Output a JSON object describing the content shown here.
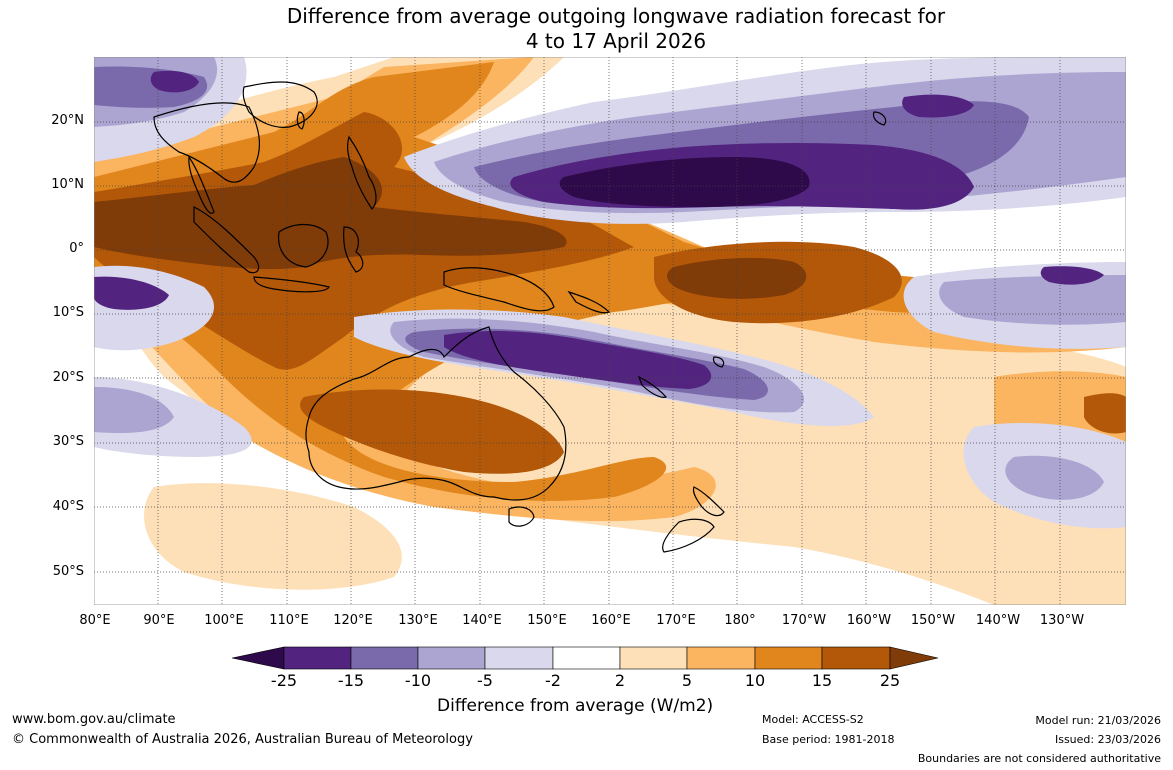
{
  "title": {
    "line1": "Difference from average outgoing longwave radiation forecast for",
    "line2": "4 to 17 April 2026"
  },
  "lat_labels": [
    "20°N",
    "10°N",
    "0°",
    "10°S",
    "20°S",
    "30°S",
    "40°S",
    "50°S"
  ],
  "lon_labels": [
    "80°E",
    "90°E",
    "100°E",
    "110°E",
    "120°E",
    "130°E",
    "140°E",
    "150°E",
    "160°E",
    "170°E",
    "180°",
    "170°W",
    "160°W",
    "150°W",
    "140°W",
    "130°W"
  ],
  "colorbar": {
    "ticks": [
      "-25",
      "-15",
      "-10",
      "-5",
      "-2",
      "2",
      "5",
      "10",
      "15",
      "25"
    ],
    "colors": [
      "#2e0a4a",
      "#52247f",
      "#7b6aab",
      "#aca5d1",
      "#d9d8ec",
      "#ffffff",
      "#fde0b8",
      "#fbb45f",
      "#e0861c",
      "#b35709",
      "#7f3b08"
    ],
    "label": "Difference from average (W/m2)"
  },
  "footer": {
    "url": "www.bom.gov.au/climate",
    "copyright": "© Commonwealth of Australia 2026, Australian Bureau of Meteorology",
    "model": "Model: ACCESS-S2",
    "base_period": "Base period: 1981-2018",
    "model_run": "Model run: 21/03/2026",
    "issued": "Issued: 23/03/2026",
    "disclaimer": "Boundaries are not considered authoritative"
  }
}
